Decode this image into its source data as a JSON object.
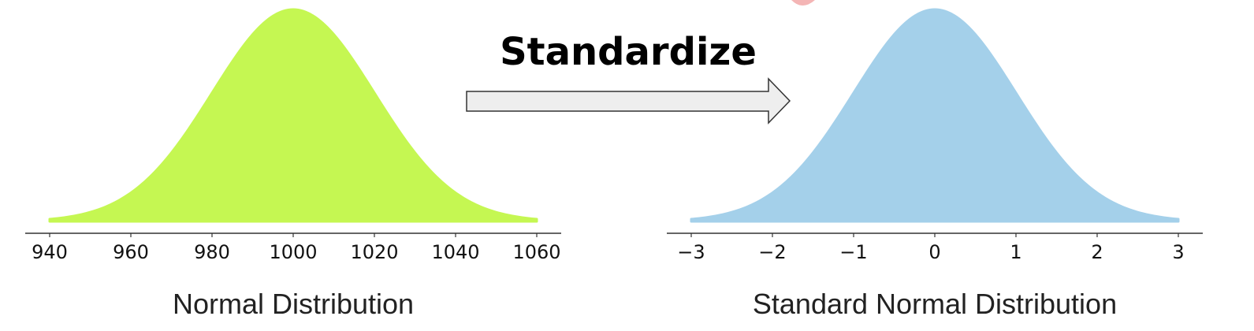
{
  "header": {
    "title": "Standardize",
    "arrow_icon": "right-arrow-icon"
  },
  "chart_data": [
    {
      "type": "area",
      "distribution": "normal",
      "mean": 1000,
      "sd": 20,
      "xlim": [
        940,
        1060
      ],
      "xticks": [
        940,
        960,
        980,
        1000,
        1020,
        1040,
        1060
      ],
      "tick_labels": [
        "940",
        "960",
        "980",
        "1000",
        "1020",
        "1040",
        "1060"
      ],
      "caption": "Normal Distribution",
      "color": "#c5f752",
      "grid": false
    },
    {
      "type": "area",
      "distribution": "normal",
      "mean": 0,
      "sd": 1,
      "xlim": [
        -3,
        3
      ],
      "xticks": [
        -3,
        -2,
        -1,
        0,
        1,
        2,
        3
      ],
      "tick_labels": [
        "−3",
        "−2",
        "−1",
        "0",
        "1",
        "2",
        "3"
      ],
      "caption": "Standard Normal Distribution",
      "color": "#a4d0ea",
      "grid": false
    }
  ]
}
